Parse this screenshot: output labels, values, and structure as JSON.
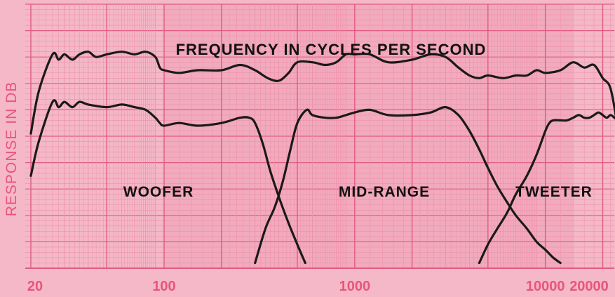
{
  "colors": {
    "paper": "#f4b8c8",
    "grid_minor": "#ee8fa8",
    "grid_major": "#e25a82",
    "curve": "#1a1a1a",
    "label_pink": "#e8557b",
    "text_dark": "#111111"
  },
  "chart_data": {
    "type": "line",
    "title": "FREQUENCY IN CYCLES PER SECOND",
    "xlabel": "",
    "ylabel": "RESPONSE IN DB",
    "x_scale": "log",
    "xlim": [
      20,
      25000
    ],
    "x_ticks": [
      20,
      100,
      1000,
      10000,
      20000
    ],
    "x_tick_labels": [
      "20",
      "100",
      "1000",
      "10000",
      "20000"
    ],
    "grid": true,
    "annotations": [
      "WOOFER",
      "MID-RANGE",
      "TWEETER"
    ],
    "series": [
      {
        "name": "",
        "x": [
          20,
          22,
          26,
          28,
          30,
          33,
          36,
          40,
          44,
          50,
          60,
          70,
          80,
          90,
          95,
          100,
          120,
          150,
          200,
          250,
          300,
          350,
          400,
          450,
          500,
          600,
          700,
          800,
          900,
          1000,
          1200,
          1500,
          2000,
          2500,
          3000,
          3500,
          4000,
          4500,
          5000,
          6000,
          7000,
          8000,
          9000,
          10000,
          12000,
          14000,
          16000,
          18000,
          20000,
          22000,
          24000,
          25000
        ],
        "y": [
          2.6,
          4.2,
          5.6,
          5.4,
          5.6,
          5.4,
          5.6,
          5.7,
          5.5,
          5.6,
          5.7,
          5.6,
          5.7,
          5.5,
          5.1,
          5.0,
          4.9,
          5.0,
          5.0,
          5.2,
          5.0,
          4.7,
          4.6,
          4.9,
          5.3,
          5.3,
          5.2,
          5.3,
          5.6,
          5.6,
          5.6,
          5.3,
          5.4,
          5.6,
          5.5,
          5.1,
          4.8,
          4.7,
          4.8,
          4.7,
          4.8,
          4.8,
          5.0,
          4.9,
          5.0,
          5.3,
          5.1,
          5.2,
          4.7,
          4.3,
          2.8,
          1.8
        ]
      },
      {
        "name": "",
        "x": [
          20,
          22,
          26,
          28,
          30,
          33,
          36,
          40,
          50,
          60,
          70,
          80,
          90,
          95,
          100,
          120,
          150,
          200,
          250,
          280,
          300,
          330,
          360,
          400,
          450,
          500,
          550
        ],
        "y": [
          1.0,
          2.3,
          3.8,
          3.6,
          3.8,
          3.6,
          3.8,
          3.7,
          3.6,
          3.7,
          3.6,
          3.5,
          3.2,
          3.0,
          2.9,
          3.0,
          2.9,
          3.0,
          3.2,
          3.2,
          3.0,
          2.2,
          1.2,
          0.2,
          -0.8,
          -1.6,
          -2.3
        ]
      },
      {
        "name": "",
        "x": [
          300,
          340,
          380,
          420,
          460,
          500,
          560,
          600,
          700,
          800,
          900,
          1000,
          1200,
          1500,
          2000,
          2500,
          3000,
          3500,
          4000,
          4500,
          5000,
          5600,
          6300,
          7000,
          8000,
          9000,
          10000,
          11000,
          12000
        ],
        "y": [
          -2.3,
          -1.0,
          -0.2,
          0.8,
          2.0,
          3.0,
          3.5,
          3.3,
          3.2,
          3.2,
          3.3,
          3.4,
          3.5,
          3.3,
          3.3,
          3.4,
          3.6,
          3.3,
          2.7,
          2.0,
          1.3,
          0.6,
          0.0,
          -0.5,
          -1.0,
          -1.5,
          -1.8,
          -2.1,
          -2.3
        ]
      },
      {
        "name": "",
        "x": [
          4500,
          5000,
          5600,
          6300,
          7000,
          8000,
          9000,
          10000,
          10500,
          11000,
          12000,
          13000,
          14000,
          15000,
          16000,
          17000,
          18000,
          19000,
          20000,
          21000,
          22000,
          23000,
          23500,
          24000,
          24500,
          25000
        ],
        "y": [
          -2.3,
          -1.6,
          -1.0,
          -0.4,
          0.3,
          1.0,
          1.8,
          2.7,
          3.0,
          3.1,
          3.1,
          3.1,
          3.2,
          3.3,
          3.2,
          3.2,
          3.3,
          3.4,
          3.3,
          3.2,
          3.3,
          3.2,
          3.1,
          2.0,
          0.5,
          -0.6
        ]
      }
    ],
    "ylim": [
      -2.5,
      7.5
    ]
  }
}
